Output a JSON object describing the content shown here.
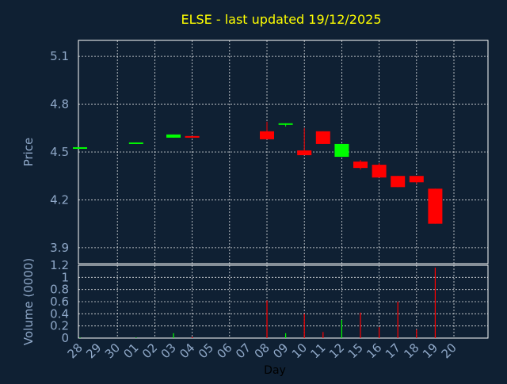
{
  "colors": {
    "background": "#0f2033",
    "title": "#ffff00",
    "axis_text": "#8fa8c8",
    "up": "#00ff00",
    "down": "#ff0000",
    "grid": "#ffffff"
  },
  "chart_data": [
    {
      "type": "candlestick",
      "title": "ELSE - last updated 19/12/2025",
      "ylabel": "Price",
      "ylim": [
        3.8,
        5.2
      ],
      "yticks": [
        "5.1",
        "4.8",
        "4.5",
        "4.2",
        "3.9"
      ],
      "ytick_values": [
        5.1,
        4.8,
        4.5,
        4.2,
        3.9
      ],
      "grid": true,
      "categories": [
        "28",
        "29",
        "30",
        "01",
        "02",
        "03",
        "04",
        "05",
        "06",
        "07",
        "08",
        "09",
        "10",
        "11",
        "12",
        "15",
        "16",
        "17",
        "18",
        "19",
        "20"
      ],
      "candles": [
        {
          "day": "28",
          "open": 4.52,
          "close": 4.53,
          "high": 4.53,
          "low": 4.52,
          "color": "up"
        },
        {
          "day": "01",
          "open": 4.55,
          "close": 4.56,
          "high": 4.56,
          "low": 4.55,
          "color": "up"
        },
        {
          "day": "03",
          "open": 4.59,
          "close": 4.61,
          "high": 4.61,
          "low": 4.59,
          "color": "up"
        },
        {
          "day": "04",
          "open": 4.6,
          "close": 4.59,
          "high": 4.6,
          "low": 4.59,
          "color": "down"
        },
        {
          "day": "08",
          "open": 4.63,
          "close": 4.58,
          "high": 4.69,
          "low": 4.58,
          "color": "down"
        },
        {
          "day": "09",
          "open": 4.67,
          "close": 4.68,
          "high": 4.68,
          "low": 4.66,
          "color": "up"
        },
        {
          "day": "10",
          "open": 4.51,
          "close": 4.48,
          "high": 4.65,
          "low": 4.48,
          "color": "down"
        },
        {
          "day": "11",
          "open": 4.63,
          "close": 4.55,
          "high": 4.63,
          "low": 4.55,
          "color": "down"
        },
        {
          "day": "12",
          "open": 4.47,
          "close": 4.55,
          "high": 4.55,
          "low": 4.47,
          "color": "up"
        },
        {
          "day": "15",
          "open": 4.44,
          "close": 4.4,
          "high": 4.45,
          "low": 4.39,
          "color": "down"
        },
        {
          "day": "16",
          "open": 4.42,
          "close": 4.34,
          "high": 4.43,
          "low": 4.34,
          "color": "down"
        },
        {
          "day": "17",
          "open": 4.35,
          "close": 4.28,
          "high": 4.35,
          "low": 4.28,
          "color": "down"
        },
        {
          "day": "18",
          "open": 4.35,
          "close": 4.31,
          "high": 4.35,
          "low": 4.3,
          "color": "down"
        },
        {
          "day": "19",
          "open": 4.27,
          "close": 4.05,
          "high": 4.27,
          "low": 4.05,
          "color": "down"
        }
      ]
    },
    {
      "type": "bar",
      "ylabel": "Volume (0000)",
      "xlabel": "Day",
      "ylim": [
        0,
        1.2
      ],
      "yticks": [
        "1.2",
        "1",
        "0.8",
        "0.6",
        "0.4",
        "0.2",
        "0"
      ],
      "ytick_values": [
        1.2,
        1.0,
        0.8,
        0.6,
        0.4,
        0.2,
        0
      ],
      "grid": true,
      "categories": [
        "28",
        "29",
        "30",
        "01",
        "02",
        "03",
        "04",
        "05",
        "06",
        "07",
        "08",
        "09",
        "10",
        "11",
        "12",
        "15",
        "16",
        "17",
        "18",
        "19",
        "20"
      ],
      "bars": [
        {
          "day": "28",
          "value": 0.01,
          "color": "up"
        },
        {
          "day": "01",
          "value": 0.01,
          "color": "up"
        },
        {
          "day": "03",
          "value": 0.08,
          "color": "up"
        },
        {
          "day": "04",
          "value": 0.02,
          "color": "down"
        },
        {
          "day": "08",
          "value": 0.62,
          "color": "down"
        },
        {
          "day": "09",
          "value": 0.08,
          "color": "up"
        },
        {
          "day": "10",
          "value": 0.4,
          "color": "down"
        },
        {
          "day": "11",
          "value": 0.1,
          "color": "down"
        },
        {
          "day": "12",
          "value": 0.3,
          "color": "up"
        },
        {
          "day": "15",
          "value": 0.42,
          "color": "down"
        },
        {
          "day": "16",
          "value": 0.18,
          "color": "down"
        },
        {
          "day": "17",
          "value": 0.6,
          "color": "down"
        },
        {
          "day": "18",
          "value": 0.14,
          "color": "down"
        },
        {
          "day": "19",
          "value": 1.16,
          "color": "down"
        }
      ]
    }
  ]
}
